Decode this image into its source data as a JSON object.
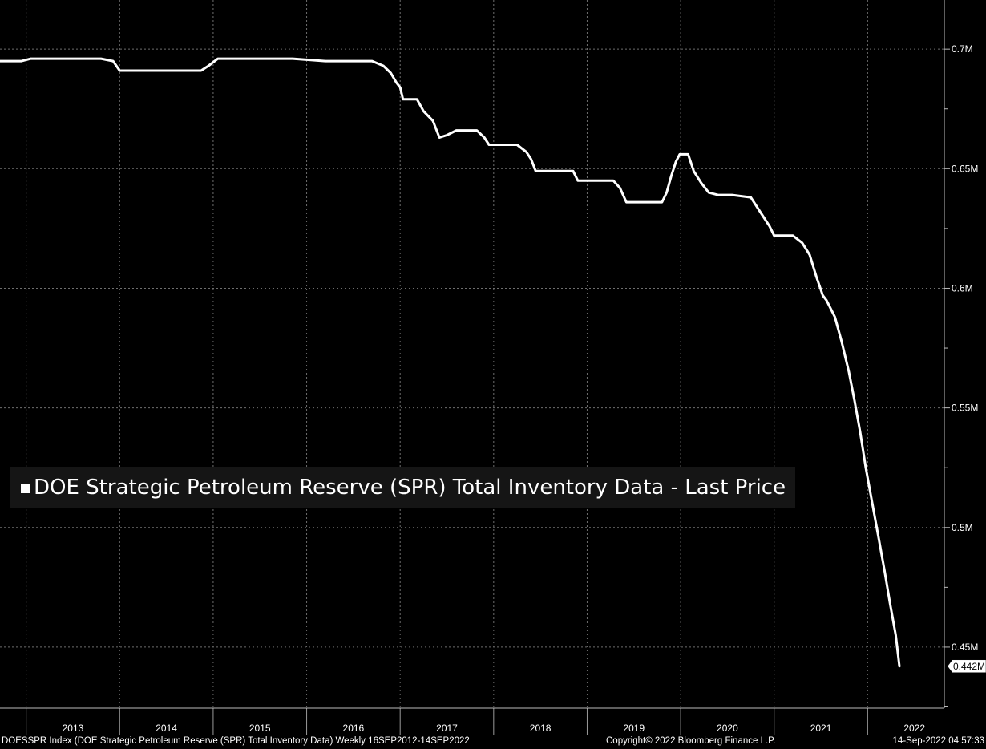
{
  "chart_data": {
    "type": "line",
    "title": "",
    "legend": {
      "label": "DOE Strategic Petroleum Reserve (SPR) Total Inventory Data - Last Price",
      "placement": "lower-left"
    },
    "xlabel": "",
    "ylabel": "",
    "x_tick_labels": [
      "2013",
      "2014",
      "2015",
      "2016",
      "2017",
      "2018",
      "2019",
      "2020",
      "2021",
      "2022"
    ],
    "y_ticks": [
      {
        "value": 0.45,
        "label": "0.45M"
      },
      {
        "value": 0.5,
        "label": "0.5M"
      },
      {
        "value": 0.55,
        "label": "0.55M"
      },
      {
        "value": 0.6,
        "label": "0.6M"
      },
      {
        "value": 0.65,
        "label": "0.65M"
      },
      {
        "value": 0.7,
        "label": "0.7M"
      }
    ],
    "ylim": [
      0.4245,
      0.7205
    ],
    "xlim": [
      2012.72,
      2022.82
    ],
    "y_units": "million barrels",
    "grid": true,
    "last_value_label": "0.442M",
    "series": [
      {
        "name": "DOE Strategic Petroleum Reserve (SPR) Total Inventory Data - Last Price",
        "color": "#ffffff",
        "points": [
          [
            2012.72,
            0.695
          ],
          [
            2012.95,
            0.695
          ],
          [
            2013.05,
            0.696
          ],
          [
            2013.3,
            0.696
          ],
          [
            2013.6,
            0.696
          ],
          [
            2013.8,
            0.696
          ],
          [
            2013.93,
            0.695
          ],
          [
            2014.0,
            0.691
          ],
          [
            2014.3,
            0.691
          ],
          [
            2014.6,
            0.691
          ],
          [
            2014.87,
            0.691
          ],
          [
            2014.95,
            0.693
          ],
          [
            2015.05,
            0.696
          ],
          [
            2015.5,
            0.696
          ],
          [
            2015.85,
            0.696
          ],
          [
            2016.2,
            0.695
          ],
          [
            2016.5,
            0.695
          ],
          [
            2016.7,
            0.695
          ],
          [
            2016.82,
            0.693
          ],
          [
            2016.9,
            0.69
          ],
          [
            2016.96,
            0.686
          ],
          [
            2017.0,
            0.684
          ],
          [
            2017.03,
            0.679
          ],
          [
            2017.18,
            0.679
          ],
          [
            2017.25,
            0.674
          ],
          [
            2017.35,
            0.67
          ],
          [
            2017.42,
            0.663
          ],
          [
            2017.5,
            0.664
          ],
          [
            2017.6,
            0.666
          ],
          [
            2017.82,
            0.666
          ],
          [
            2017.9,
            0.663
          ],
          [
            2017.95,
            0.66
          ],
          [
            2018.05,
            0.66
          ],
          [
            2018.25,
            0.66
          ],
          [
            2018.35,
            0.657
          ],
          [
            2018.4,
            0.654
          ],
          [
            2018.45,
            0.649
          ],
          [
            2018.55,
            0.649
          ],
          [
            2018.85,
            0.649
          ],
          [
            2018.9,
            0.645
          ],
          [
            2019.1,
            0.645
          ],
          [
            2019.28,
            0.645
          ],
          [
            2019.35,
            0.642
          ],
          [
            2019.42,
            0.636
          ],
          [
            2019.55,
            0.636
          ],
          [
            2019.8,
            0.636
          ],
          [
            2019.85,
            0.64
          ],
          [
            2019.9,
            0.647
          ],
          [
            2019.95,
            0.653
          ],
          [
            2019.99,
            0.656
          ],
          [
            2020.08,
            0.656
          ],
          [
            2020.14,
            0.649
          ],
          [
            2020.22,
            0.644
          ],
          [
            2020.3,
            0.64
          ],
          [
            2020.4,
            0.639
          ],
          [
            2020.55,
            0.639
          ],
          [
            2020.75,
            0.638
          ],
          [
            2020.85,
            0.632
          ],
          [
            2020.95,
            0.626
          ],
          [
            2021.0,
            0.622
          ],
          [
            2021.2,
            0.622
          ],
          [
            2021.3,
            0.619
          ],
          [
            2021.38,
            0.614
          ],
          [
            2021.45,
            0.605
          ],
          [
            2021.52,
            0.597
          ],
          [
            2021.56,
            0.595
          ],
          [
            2021.65,
            0.588
          ],
          [
            2021.72,
            0.578
          ],
          [
            2021.8,
            0.565
          ],
          [
            2021.86,
            0.553
          ],
          [
            2021.92,
            0.54
          ],
          [
            2021.98,
            0.525
          ],
          [
            2022.05,
            0.51
          ],
          [
            2022.12,
            0.495
          ],
          [
            2022.18,
            0.482
          ],
          [
            2022.24,
            0.468
          ],
          [
            2022.3,
            0.455
          ],
          [
            2022.34,
            0.442
          ]
        ]
      }
    ]
  },
  "footer": {
    "left": "DOESSPR Index (DOE Strategic Petroleum Reserve (SPR) Total Inventory Data)  Weekly 16SEP2012-14SEP2022",
    "copyright": "Copyright© 2022 Bloomberg Finance L.P.",
    "timestamp": "14-Sep-2022 04:57:33"
  }
}
